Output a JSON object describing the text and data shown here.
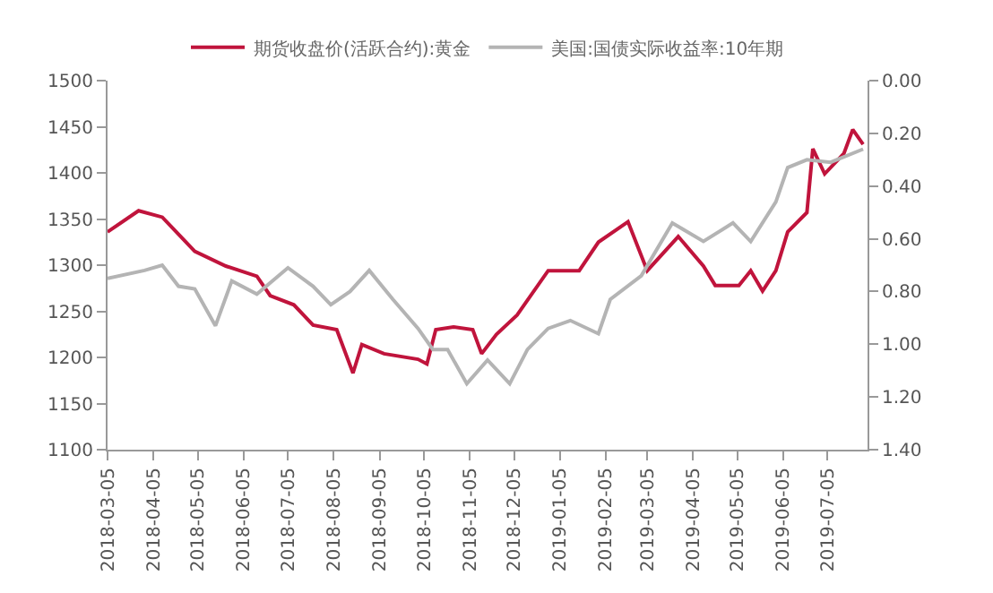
{
  "chart_data": {
    "type": "line",
    "legend": "top",
    "xlim": [
      "2018-03-05",
      "2019-08-01"
    ],
    "xticks": [
      {
        "value": "2018-03-05",
        "label": "2018-03-05"
      },
      {
        "value": "2018-04-05",
        "label": "2018-04-05"
      },
      {
        "value": "2018-05-05",
        "label": "2018-05-05"
      },
      {
        "value": "2018-06-05",
        "label": "2018-06-05"
      },
      {
        "value": "2018-07-05",
        "label": "2018-07-05"
      },
      {
        "value": "2018-08-05",
        "label": "2018-08-05"
      },
      {
        "value": "2018-09-05",
        "label": "2018-09-05"
      },
      {
        "value": "2018-10-05",
        "label": "2018-10-05"
      },
      {
        "value": "2018-11-05",
        "label": "2018-11-05"
      },
      {
        "value": "2018-12-05",
        "label": "2018-12-05"
      },
      {
        "value": "2019-01-05",
        "label": "2019-01-05"
      },
      {
        "value": "2019-02-05",
        "label": "2019-02-05"
      },
      {
        "value": "2019-03-05",
        "label": "2019-03-05"
      },
      {
        "value": "2019-04-05",
        "label": "2019-04-05"
      },
      {
        "value": "2019-05-05",
        "label": "2019-05-05"
      },
      {
        "value": "2019-06-05",
        "label": "2019-06-05"
      },
      {
        "value": "2019-07-05",
        "label": "2019-07-05"
      }
    ],
    "ylim": [
      1100,
      1500
    ],
    "yticks": [
      1100,
      1150,
      1200,
      1250,
      1300,
      1350,
      1400,
      1450,
      1500
    ],
    "y2lim": [
      1.4,
      0.0
    ],
    "y2ticks": [
      {
        "value": 0,
        "label": "0.00"
      },
      {
        "value": 0.2,
        "label": "0.20"
      },
      {
        "value": 0.4,
        "label": "0.40"
      },
      {
        "value": 0.6,
        "label": "0.60"
      },
      {
        "value": 0.8,
        "label": "0.80"
      },
      {
        "value": 1.0,
        "label": "1.00"
      },
      {
        "value": 1.2,
        "label": "1.20"
      },
      {
        "value": 1.4,
        "label": "1.40"
      }
    ],
    "series": [
      {
        "name": "期货收盘价(活跃合约):黄金",
        "color": "#c0143c",
        "x": [
          "2018-03-05",
          "2018-03-26",
          "2018-04-11",
          "2018-05-03",
          "2018-05-24",
          "2018-06-14",
          "2018-06-23",
          "2018-07-09",
          "2018-07-22",
          "2018-08-07",
          "2018-08-18",
          "2018-08-24",
          "2018-09-08",
          "2018-10-01",
          "2018-10-07",
          "2018-10-13",
          "2018-10-25",
          "2018-11-07",
          "2018-11-13",
          "2018-11-23",
          "2018-12-07",
          "2018-12-28",
          "2019-01-18",
          "2019-01-31",
          "2019-02-20",
          "2019-03-05",
          "2019-03-26",
          "2019-04-12",
          "2019-04-20",
          "2019-05-06",
          "2019-05-14",
          "2019-05-22",
          "2019-05-31",
          "2019-06-08",
          "2019-06-21",
          "2019-06-25",
          "2019-07-03",
          "2019-07-16",
          "2019-07-22",
          "2019-07-29"
        ],
        "values": [
          1336,
          1359,
          1352,
          1315,
          1299,
          1288,
          1267,
          1257,
          1235,
          1230,
          1183,
          1214,
          1204,
          1198,
          1193,
          1230,
          1233,
          1230,
          1204,
          1225,
          1246,
          1294,
          1294,
          1325,
          1347,
          1294,
          1331,
          1299,
          1278,
          1278,
          1294,
          1272,
          1294,
          1336,
          1357,
          1426,
          1399,
          1421,
          1447,
          1431
        ]
      },
      {
        "name": "美国:国债实际收益率:10年期",
        "color": "#b4b4b4",
        "axis": "y2",
        "x": [
          "2018-03-05",
          "2018-03-30",
          "2018-04-11",
          "2018-04-22",
          "2018-05-03",
          "2018-05-17",
          "2018-05-28",
          "2018-06-14",
          "2018-07-05",
          "2018-07-22",
          "2018-08-03",
          "2018-08-16",
          "2018-08-29",
          "2018-09-14",
          "2018-10-01",
          "2018-10-11",
          "2018-10-21",
          "2018-11-03",
          "2018-11-17",
          "2018-12-02",
          "2018-12-14",
          "2018-12-28",
          "2019-01-12",
          "2019-01-31",
          "2019-02-08",
          "2019-03-01",
          "2019-03-22",
          "2019-04-12",
          "2019-05-02",
          "2019-05-14",
          "2019-05-31",
          "2019-06-08",
          "2019-06-21",
          "2019-07-07",
          "2019-07-29"
        ],
        "values": [
          0.75,
          0.72,
          0.7,
          0.78,
          0.79,
          0.93,
          0.76,
          0.81,
          0.71,
          0.78,
          0.85,
          0.8,
          0.72,
          0.83,
          0.94,
          1.02,
          1.02,
          1.15,
          1.06,
          1.15,
          1.02,
          0.94,
          0.91,
          0.96,
          0.83,
          0.74,
          0.54,
          0.61,
          0.54,
          0.61,
          0.46,
          0.33,
          0.3,
          0.31,
          0.26
        ]
      }
    ]
  }
}
